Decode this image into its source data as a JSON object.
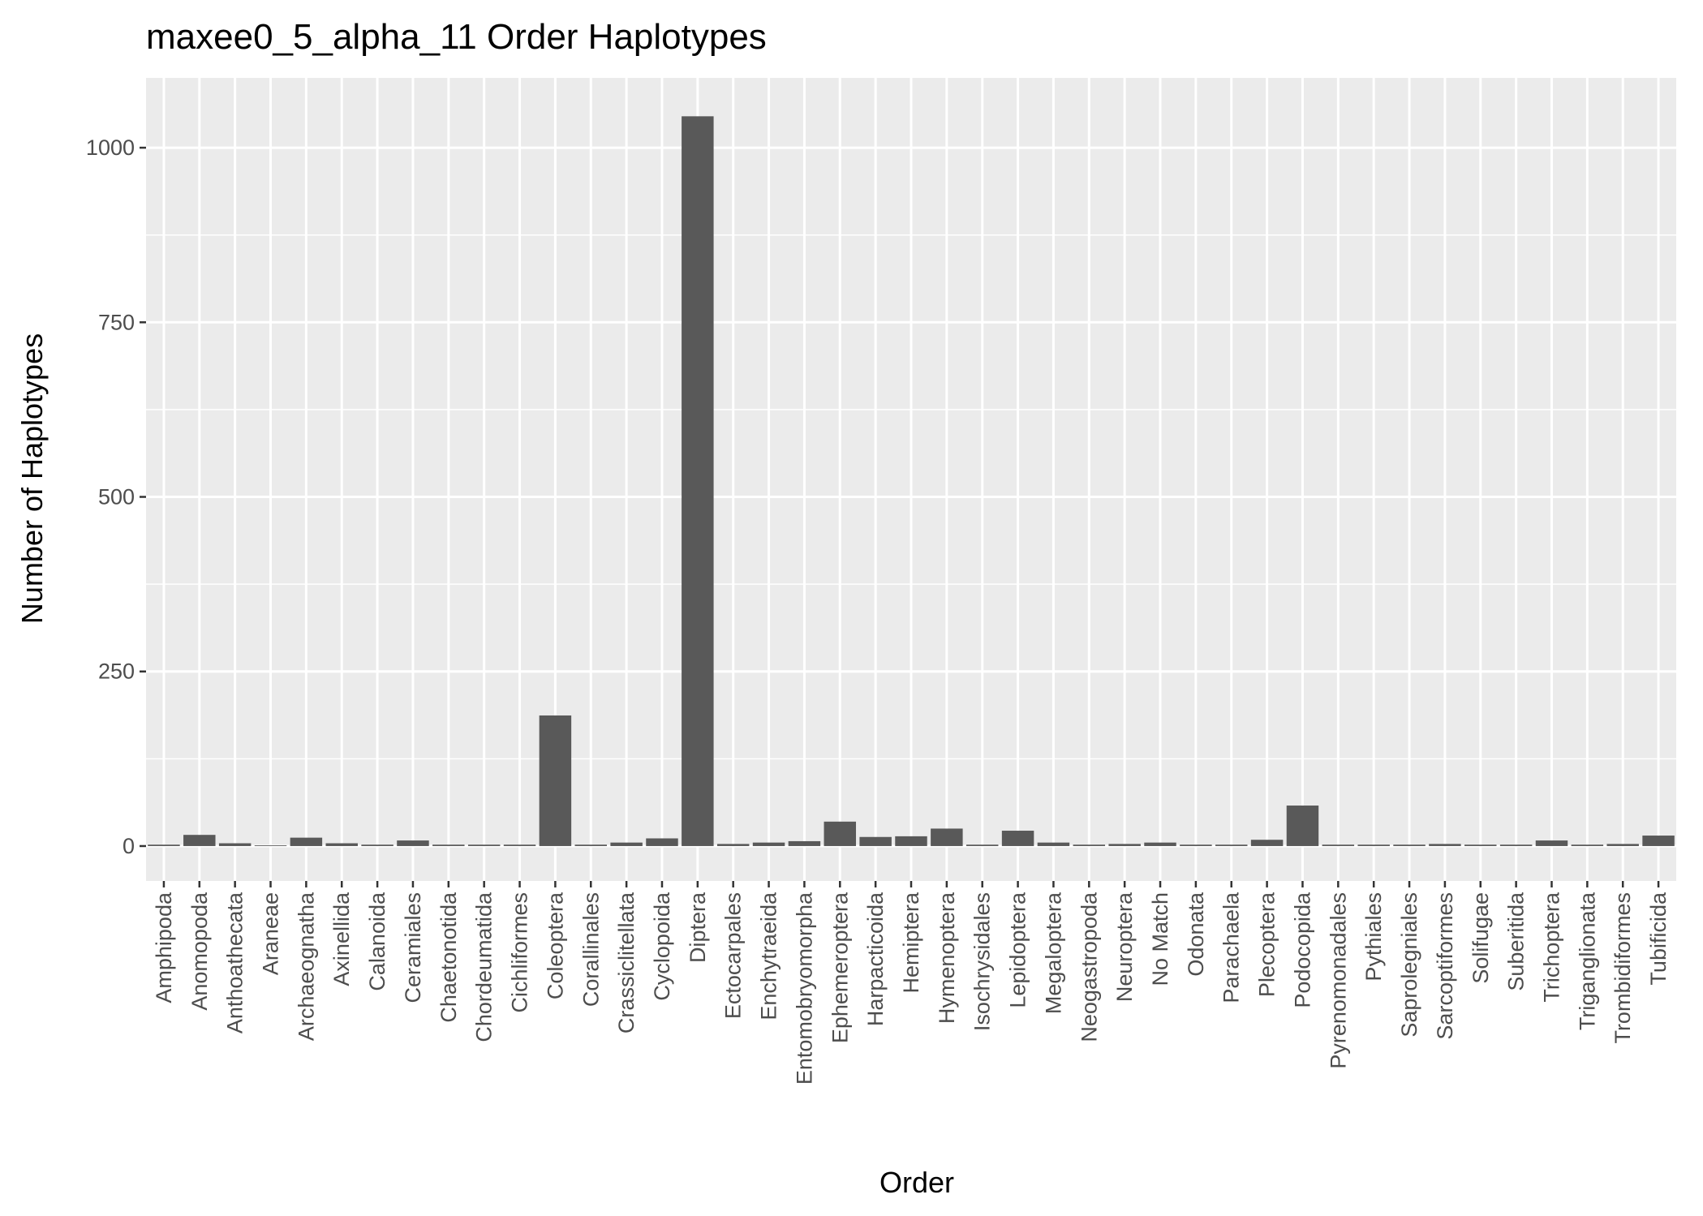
{
  "chart_data": {
    "type": "bar",
    "title": "maxee0_5_alpha_11 Order Haplotypes",
    "xlabel": "Order",
    "ylabel": "Number of Haplotypes",
    "ylim": [
      -50,
      1100
    ],
    "y_ticks": [
      0,
      250,
      500,
      750,
      1000
    ],
    "y_tick_labels": [
      "0",
      "250",
      "500",
      "750",
      "1000"
    ],
    "grid": true,
    "legend": "none",
    "colors": {
      "panel": "#ebebeb",
      "grid": "#ffffff",
      "bar": "#595959",
      "tick": "#333333",
      "tick_text": "#4d4d4d"
    },
    "categories": [
      "Amphipoda",
      "Anomopoda",
      "Anthoathecata",
      "Araneae",
      "Archaeognatha",
      "Axinellida",
      "Calanoida",
      "Ceramiales",
      "Chaetonotida",
      "Chordeumatida",
      "Cichliformes",
      "Coleoptera",
      "Corallinales",
      "Crassiclitellata",
      "Cyclopoida",
      "Diptera",
      "Ectocarpales",
      "Enchytraeida",
      "Entomobryomorpha",
      "Ephemeroptera",
      "Harpacticoida",
      "Hemiptera",
      "Hymenoptera",
      "Isochrysidales",
      "Lepidoptera",
      "Megaloptera",
      "Neogastropoda",
      "Neuroptera",
      "No Match",
      "Odonata",
      "Parachaela",
      "Plecoptera",
      "Podocopida",
      "Pyrenomonadales",
      "Pythiales",
      "Saprolegniales",
      "Sarcoptiformes",
      "Solifugae",
      "Suberitida",
      "Trichoptera",
      "Triganglionata",
      "Trombidiformes",
      "Tubificida"
    ],
    "values": [
      2,
      16,
      4,
      1,
      12,
      4,
      2,
      8,
      2,
      2,
      2,
      187,
      2,
      5,
      11,
      1045,
      3,
      5,
      7,
      35,
      13,
      14,
      25,
      2,
      22,
      5,
      2,
      3,
      5,
      2,
      2,
      9,
      58,
      2,
      2,
      2,
      3,
      2,
      2,
      8,
      2,
      3,
      15
    ]
  }
}
